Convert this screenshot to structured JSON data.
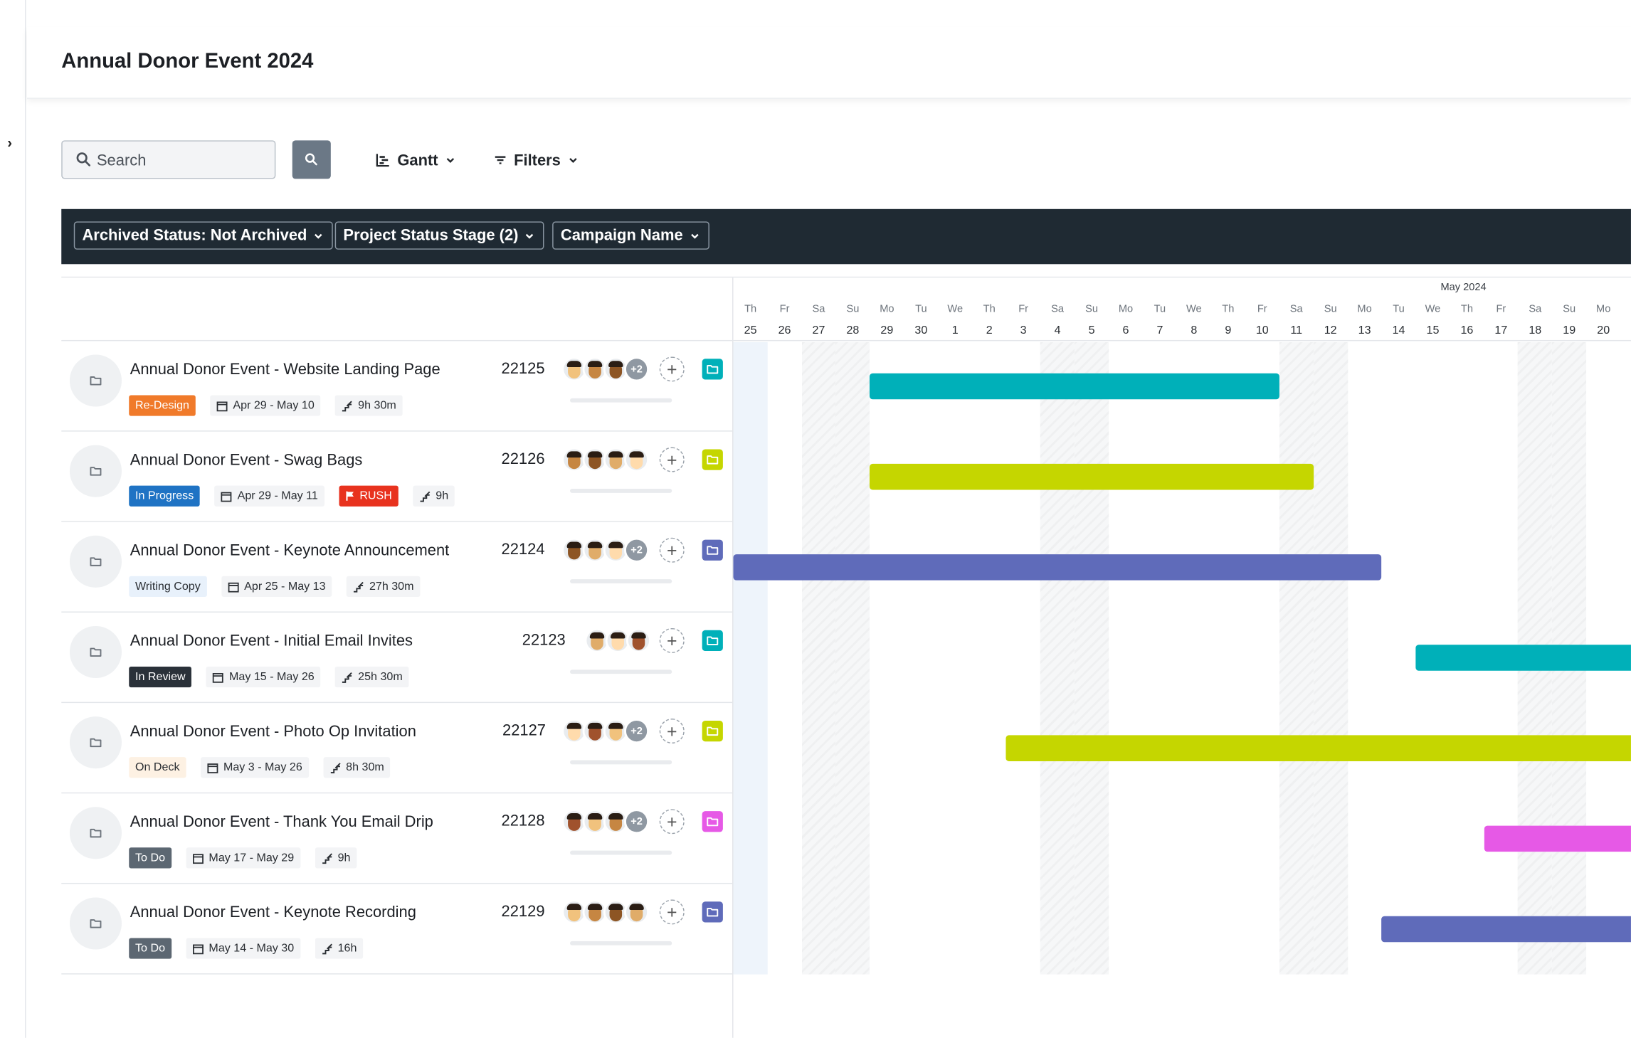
{
  "header": {
    "title": "Annual Donor Event 2024"
  },
  "toolbar": {
    "search_placeholder": "Search",
    "view_label": "Gantt",
    "filters_label": "Filters"
  },
  "filters": [
    {
      "label": "Archived Status: Not Archived"
    },
    {
      "label": "Project Status Stage (2)"
    },
    {
      "label": "Campaign Name"
    }
  ],
  "gantt": {
    "month_label": "May 2024",
    "days": [
      {
        "dow": "Th",
        "d": "25"
      },
      {
        "dow": "Fr",
        "d": "26"
      },
      {
        "dow": "Sa",
        "d": "27"
      },
      {
        "dow": "Su",
        "d": "28"
      },
      {
        "dow": "Mo",
        "d": "29"
      },
      {
        "dow": "Tu",
        "d": "30"
      },
      {
        "dow": "We",
        "d": "1"
      },
      {
        "dow": "Th",
        "d": "2"
      },
      {
        "dow": "Fr",
        "d": "3"
      },
      {
        "dow": "Sa",
        "d": "4"
      },
      {
        "dow": "Su",
        "d": "5"
      },
      {
        "dow": "Mo",
        "d": "6"
      },
      {
        "dow": "Tu",
        "d": "7"
      },
      {
        "dow": "We",
        "d": "8"
      },
      {
        "dow": "Th",
        "d": "9"
      },
      {
        "dow": "Fr",
        "d": "10"
      },
      {
        "dow": "Sa",
        "d": "11"
      },
      {
        "dow": "Su",
        "d": "12"
      },
      {
        "dow": "Mo",
        "d": "13"
      },
      {
        "dow": "Tu",
        "d": "14"
      },
      {
        "dow": "We",
        "d": "15"
      },
      {
        "dow": "Th",
        "d": "16"
      },
      {
        "dow": "Fr",
        "d": "17"
      },
      {
        "dow": "Sa",
        "d": "18"
      },
      {
        "dow": "Su",
        "d": "19"
      },
      {
        "dow": "Mo",
        "d": "20"
      }
    ]
  },
  "projects": [
    {
      "name": "Annual Donor Event - Website Landing Page",
      "id": "22125",
      "status": "Re-Design",
      "status_bg": "#f07a2a",
      "status_fg": "#ffffff",
      "dates": "Apr 29 - May 10",
      "time": "9h 30m",
      "more": "+2",
      "color": "#00b0b9",
      "start_day": 4,
      "end_day": 16
    },
    {
      "name": "Annual Donor Event - Swag Bags",
      "id": "22126",
      "status": "In Progress",
      "status_bg": "#1f73c4",
      "status_fg": "#ffffff",
      "dates": "Apr 29 - May 11",
      "flag": "RUSH",
      "time": "9h",
      "more": "",
      "color": "#c5d600",
      "start_day": 4,
      "end_day": 17
    },
    {
      "name": "Annual Donor Event - Keynote Announcement",
      "id": "22124",
      "status": "Writing Copy",
      "status_bg": "#e8f1fb",
      "status_fg": "#2a2e33",
      "dates": "Apr 25 - May 13",
      "time": "27h 30m",
      "more": "+2",
      "color": "#5f6bba",
      "start_day": 0,
      "end_day": 19
    },
    {
      "name": "Annual Donor Event - Initial Email Invites",
      "id": "22123",
      "status": "In Review",
      "status_bg": "#2a3139",
      "status_fg": "#ffffff",
      "dates": "May 15 - May 26",
      "time": "25h 30m",
      "more": "",
      "color": "#00b0b9",
      "start_day": 20,
      "end_day": 32
    },
    {
      "name": "Annual Donor Event - Photo Op Invitation",
      "id": "22127",
      "status": "On Deck",
      "status_bg": "#fdf1e3",
      "status_fg": "#2a2e33",
      "dates": "May 3 - May 26",
      "time": "8h 30m",
      "more": "+2",
      "color": "#c5d600",
      "start_day": 8,
      "end_day": 32
    },
    {
      "name": "Annual Donor Event - Thank You Email Drip",
      "id": "22128",
      "status": "To Do",
      "status_bg": "#5c6772",
      "status_fg": "#ffffff",
      "dates": "May 17 - May 29",
      "time": "9h",
      "more": "+2",
      "color": "#e659e6",
      "start_day": 22,
      "end_day": 35
    },
    {
      "name": "Annual Donor Event - Keynote Recording",
      "id": "22129",
      "status": "To Do",
      "status_bg": "#5c6772",
      "status_fg": "#ffffff",
      "dates": "May 14 - May 30",
      "time": "16h",
      "more": "",
      "color": "#5f6bba",
      "start_day": 19,
      "end_day": 36
    }
  ]
}
